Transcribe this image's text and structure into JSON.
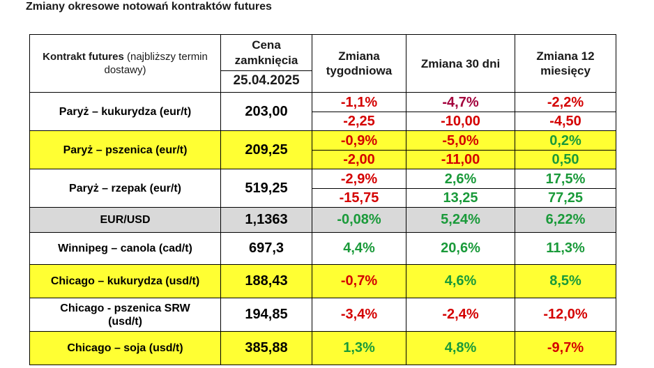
{
  "title": "Zmiany okresowe notowań kontraktów futures",
  "header": {
    "contract_bold": "Kontrakt futures",
    "contract_normal": " (najbliższy termin dostawy)",
    "price_label": "Cena zamknięcia",
    "price_date": "25.04.2025",
    "weekly": "Zmiana tygodniowa",
    "days30": "Zmiana 30 dni",
    "months12": "Zmiana 12 miesięcy"
  },
  "colors": {
    "highlight": "#ffff33",
    "gray": "#d9d9d9",
    "negative": "#d40000",
    "positive": "#1a9a3a",
    "maroon": "#a3003c"
  },
  "rows": [
    {
      "name": "Paryż – kukurydza  (eur/t)",
      "price": "203,00",
      "style": "white",
      "weekly_pct": "-1,1%",
      "weekly_abs": "-2,25",
      "d30_pct": "-4,7%",
      "d30_abs": "-10,00",
      "m12_pct": "-2,2%",
      "m12_abs": "-4,50"
    },
    {
      "name": "Paryż – pszenica (eur/t)",
      "price": "209,25",
      "style": "yellow",
      "weekly_pct": "-0,9%",
      "weekly_abs": "-2,00",
      "d30_pct": "-5,0%",
      "d30_abs": "-11,00",
      "m12_pct": "0,2%",
      "m12_abs": "0,50"
    },
    {
      "name": "Paryż – rzepak (eur/t)",
      "price": "519,25",
      "style": "white",
      "weekly_pct": "-2,9%",
      "weekly_abs": "-15,75",
      "d30_pct": "2,6%",
      "d30_abs": "13,25",
      "m12_pct": "17,5%",
      "m12_abs": "77,25"
    },
    {
      "name": "EUR/USD",
      "price": "1,1363",
      "style": "gray",
      "weekly": "-0,08%",
      "d30": "5,24%",
      "m12": "6,22%"
    },
    {
      "name": "Winnipeg – canola (cad/t)",
      "price": "697,3",
      "style": "white",
      "weekly": "4,4%",
      "d30": "20,6%",
      "m12": "11,3%"
    },
    {
      "name": "Chicago – kukurydza (usd/t)",
      "price": "188,43",
      "style": "yellow",
      "weekly": "-0,7%",
      "d30": "4,6%",
      "m12": "8,5%"
    },
    {
      "name": "Chicago - pszenica SRW (usd/t)",
      "price": "194,85",
      "style": "white",
      "weekly": "-3,4%",
      "d30": "-2,4%",
      "m12": "-12,0%"
    },
    {
      "name": "Chicago – soja (usd/t)",
      "price": "385,88",
      "style": "yellow",
      "weekly": "1,3%",
      "d30": "4,8%",
      "m12": "-9,7%"
    }
  ]
}
